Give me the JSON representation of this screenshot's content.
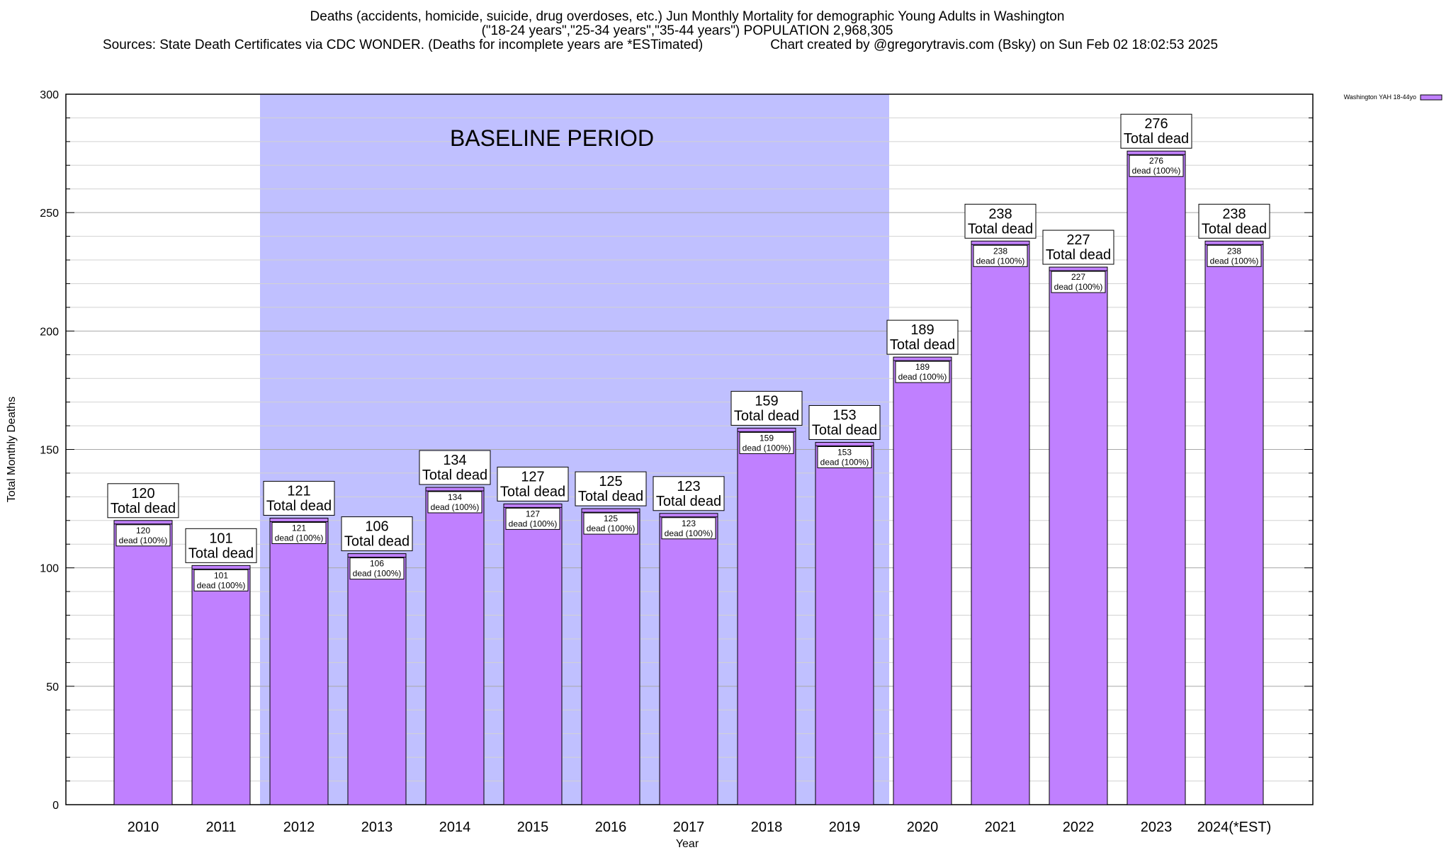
{
  "title": {
    "line1": "Deaths (accidents, homicide, suicide, drug overdoses, etc.) Jun Monthly Mortality for demographic Young Adults in Washington",
    "line2": "(\"18-24 years\",\"25-34 years\",\"35-44 years\") POPULATION 2,968,305",
    "sources": "Sources: State Death Certificates via CDC WONDER. (Deaths for incomplete years are *ESTimated)",
    "credit": "Chart created by @gregorytravis.com (Bsky) on Sun Feb 02 18:02:53 2025"
  },
  "chart_data": {
    "type": "bar",
    "xlabel": "Year",
    "ylabel": "Total Monthly Deaths",
    "ylim": [
      0,
      300
    ],
    "yticks": [
      0,
      50,
      100,
      150,
      200,
      250,
      300
    ],
    "ytick_labels": [
      "0",
      "50",
      "100",
      "150",
      "200",
      "250",
      "300"
    ],
    "grid": true,
    "legend_position": "top-right",
    "categories": [
      "2010",
      "2011",
      "2012",
      "2013",
      "2014",
      "2015",
      "2016",
      "2017",
      "2018",
      "2019",
      "2020",
      "2021",
      "2022",
      "2023",
      "2024(*EST)"
    ],
    "series": [
      {
        "name": "Washington YAH 18-44yo",
        "color": "#c080ff",
        "values": [
          120,
          101,
          121,
          106,
          134,
          127,
          125,
          123,
          159,
          153,
          189,
          238,
          227,
          276,
          238
        ]
      }
    ],
    "bar_label_total": [
      "120",
      "101",
      "121",
      "106",
      "134",
      "127",
      "125",
      "123",
      "159",
      "153",
      "189",
      "238",
      "227",
      "276",
      "238"
    ],
    "bar_label_total_text": "Total dead",
    "bar_label_inner_text": "dead (100%)",
    "baseline_period": {
      "label": "BASELINE PERIOD",
      "start_category": "2012",
      "end_category": "2019",
      "color": "#c0c0ff"
    }
  }
}
